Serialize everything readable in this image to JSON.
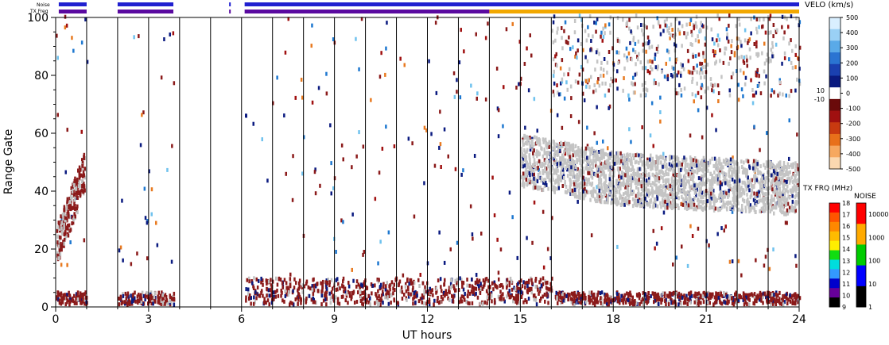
{
  "header": {
    "noise_label": "Noise",
    "txfreq_label": "TX Freq"
  },
  "chart_data": {
    "type": "heatmap",
    "xlabel": "UT hours",
    "ylabel": "Range Gate",
    "xlim": [
      0,
      24
    ],
    "ylim": [
      0,
      100
    ],
    "xticks": [
      0,
      3,
      6,
      9,
      12,
      15,
      18,
      21,
      24
    ],
    "yticks": [
      0,
      20,
      40,
      60,
      80,
      100
    ],
    "grid": "vertical lines every hour",
    "data_gaps": [
      [
        1.0,
        2.0
      ],
      [
        3.8,
        6.1
      ]
    ],
    "noise_bar_segments": [
      [
        0.1,
        1.0
      ],
      [
        2.0,
        3.8
      ],
      [
        5.6,
        5.65
      ],
      [
        6.1,
        24.0
      ]
    ],
    "txfreq_bar_segments": [
      {
        "from": 0.1,
        "to": 1.0,
        "color": "#5a0aa0"
      },
      {
        "from": 2.0,
        "to": 3.8,
        "color": "#5a0aa0"
      },
      {
        "from": 5.6,
        "to": 5.65,
        "color": "#5a0aa0"
      },
      {
        "from": 6.1,
        "to": 14.0,
        "color": "#5a0aa0"
      },
      {
        "from": 14.0,
        "to": 24.0,
        "color": "#f2a800"
      }
    ],
    "scatter_regions": [
      {
        "name": "ground",
        "x": [
          15.0,
          23.9
        ],
        "y": [
          30,
          56
        ],
        "color": "#bfbfbf"
      },
      {
        "name": "early-echo",
        "x": [
          0.05,
          0.9
        ],
        "y": [
          20,
          50
        ],
        "color": "#8b1a1a"
      },
      {
        "name": "low-gates",
        "x": [
          0.05,
          23.9
        ],
        "y": [
          0,
          8
        ],
        "color": "#8b1a1a"
      }
    ],
    "velo_scale": {
      "title": "VELO (km/s)",
      "ticks": [
        500,
        400,
        300,
        200,
        100,
        0,
        -100,
        -200,
        -300,
        -400,
        -500
      ],
      "mid_labels": [
        "10",
        "-10"
      ]
    },
    "txfrq_scale": {
      "title": "TX FRQ (MHz)",
      "ticks": [
        18,
        17,
        16,
        15,
        14,
        13,
        12,
        11,
        10,
        9
      ],
      "colors": [
        "#ff0000",
        "#ff5500",
        "#ff8800",
        "#ffbb00",
        "#ffee00",
        "#11dd11",
        "#00dddd",
        "#3399ff",
        "#0000cc",
        "#660099",
        "#000000"
      ]
    },
    "noise_scale": {
      "title": "NOISE",
      "ticks": [
        "10000",
        "1000",
        "100",
        "10",
        "1"
      ],
      "colors": [
        "#ff0000",
        "#ffaa00",
        "#00cc00",
        "#0000ff",
        "#000000"
      ]
    }
  }
}
